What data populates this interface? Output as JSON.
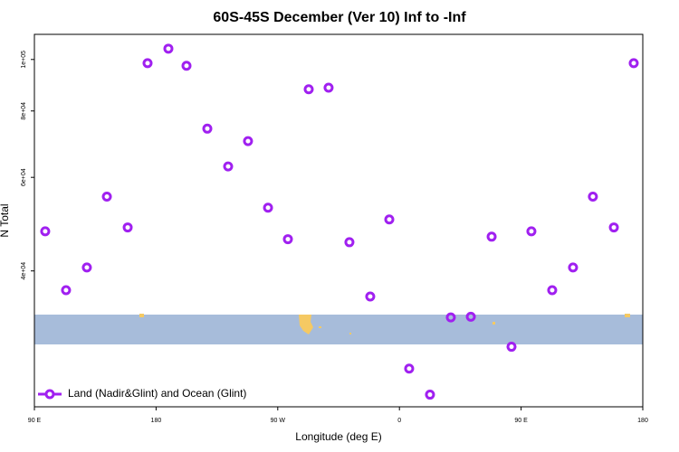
{
  "chart_data": {
    "type": "scatter",
    "title": "60S-45S December (Ver 10)   Inf to -Inf",
    "x_label": "Longitude (deg E)",
    "y_label": "N Total",
    "log_y": true,
    "xlim": [
      90,
      540
    ],
    "ylim": [
      22200,
      111500
    ],
    "xticks": [
      {
        "value": 90,
        "label": "90 E"
      },
      {
        "value": 180,
        "label": "180"
      },
      {
        "value": 270,
        "label": "90 W"
      },
      {
        "value": 360,
        "label": "0"
      },
      {
        "value": 450,
        "label": "90 E"
      },
      {
        "value": 540,
        "label": "180"
      }
    ],
    "yticks": [
      {
        "value": 40000,
        "label": "4e+04"
      },
      {
        "value": 60000,
        "label": "6e+04"
      },
      {
        "value": 80000,
        "label": "8e+04"
      },
      {
        "value": 100000,
        "label": "1e+05"
      }
    ],
    "legend": "bottom-left",
    "series": [
      {
        "name": "Land (Nadir&Glint) and Ocean (Glint)",
        "color": "#a020f0",
        "x": [
          98,
          113.4,
          128.8,
          143.6,
          159,
          173.7,
          189.1,
          202.5,
          217.9,
          233.3,
          248,
          262.8,
          277.5,
          292.9,
          307.6,
          323,
          338.4,
          352.5,
          367.2,
          382.6,
          398,
          412.8,
          428.2,
          442.9,
          457.6,
          473,
          488.4,
          503.1,
          518.6,
          533.3
        ],
        "values": [
          47500,
          36800,
          40600,
          55200,
          48300,
          98400,
          104800,
          97300,
          74100,
          62900,
          70200,
          52600,
          45900,
          87900,
          88500,
          45300,
          35800,
          50000,
          26200,
          23400,
          32700,
          32800,
          46400,
          28800,
          47500,
          36800,
          40600,
          55200,
          48300,
          98400
        ]
      }
    ]
  }
}
